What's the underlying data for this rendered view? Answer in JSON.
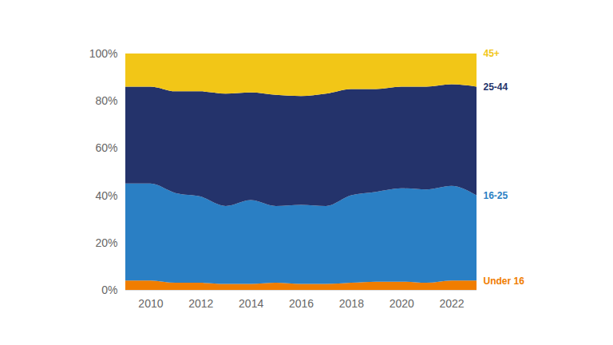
{
  "chart_data": {
    "type": "area",
    "stacked": true,
    "x": [
      2009,
      2010,
      2011,
      2012,
      2013,
      2014,
      2015,
      2016,
      2017,
      2018,
      2019,
      2020,
      2021,
      2022,
      2023
    ],
    "xlim": [
      2009,
      2023
    ],
    "xticks": [
      2010,
      2012,
      2014,
      2016,
      2018,
      2020,
      2022
    ],
    "ylim": [
      0,
      100
    ],
    "yticks": [
      {
        "value": 0,
        "label": "0%"
      },
      {
        "value": 20,
        "label": "20%"
      },
      {
        "value": 40,
        "label": "40%"
      },
      {
        "value": 60,
        "label": "60%"
      },
      {
        "value": 80,
        "label": "80%"
      },
      {
        "value": 100,
        "label": "100%"
      }
    ],
    "series": [
      {
        "name": "Under 16",
        "color": "#f07d00",
        "values": [
          4,
          4,
          3,
          3,
          2.5,
          2.5,
          3,
          2.5,
          2.5,
          3,
          3.5,
          3.5,
          3,
          4,
          4
        ]
      },
      {
        "name": "16-25",
        "color": "#2a7fc4",
        "values": [
          41,
          41,
          38,
          36.5,
          33,
          35.5,
          32.5,
          33.5,
          33,
          37,
          38,
          39.5,
          39.5,
          40,
          36
        ]
      },
      {
        "name": "25-44",
        "color": "#24336b",
        "values": [
          41,
          41,
          43,
          44.5,
          47.5,
          45.5,
          47,
          46,
          47.5,
          45,
          43.5,
          43,
          43.5,
          43,
          46
        ]
      },
      {
        "name": "45+",
        "color": "#f2c617",
        "values": [
          14,
          14,
          16,
          16,
          17,
          16.5,
          17.5,
          18,
          17,
          15,
          15,
          14,
          14,
          13,
          14
        ]
      }
    ]
  }
}
